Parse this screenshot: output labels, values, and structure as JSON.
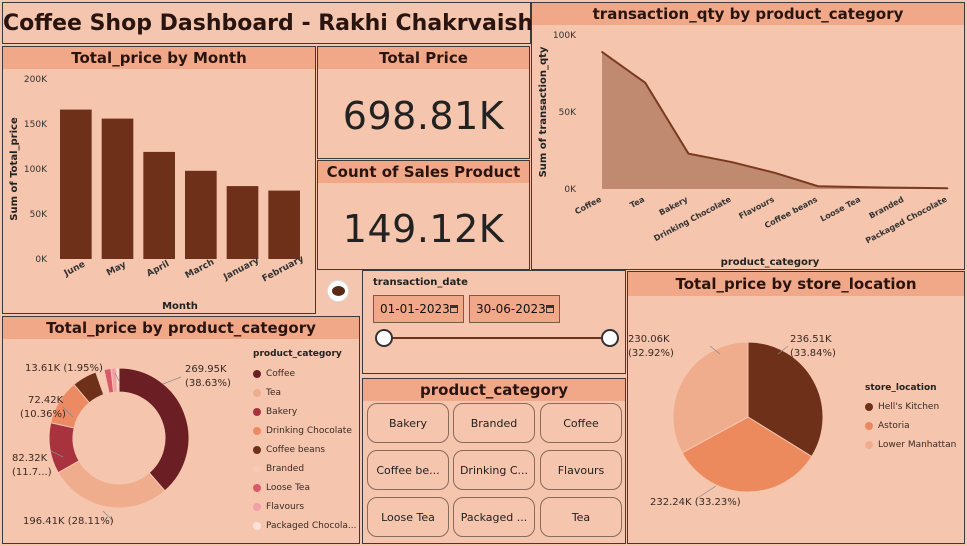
{
  "dashboard": {
    "title": "Coffee Shop Dashboard - Rakhi Chakrvaish"
  },
  "kpis": {
    "total_price": {
      "title": "Total Price",
      "value": "698.81K"
    },
    "count_sales": {
      "title": "Count of Sales Product",
      "value": "149.12K"
    }
  },
  "month_chart": {
    "title": "Total_price by Month",
    "chart_data": {
      "type": "bar",
      "categories": [
        "June",
        "May",
        "April",
        "March",
        "January",
        "February"
      ],
      "values": [
        166000,
        156000,
        119000,
        98000,
        81000,
        76000
      ],
      "ylim": [
        0,
        200000
      ],
      "yticks": [
        "0K",
        "50K",
        "100K",
        "150K",
        "200K"
      ],
      "xlabel": "Month",
      "ylabel": "Sum of Total_price",
      "color": "#6e3018"
    }
  },
  "qty_chart": {
    "title": "transaction_qty by product_category",
    "chart_data": {
      "type": "area",
      "categories": [
        "Coffee",
        "Tea",
        "Bakery",
        "Drinking Chocolate",
        "Flavours",
        "Coffee beans",
        "Loose Tea",
        "Branded",
        "Packaged Chocolate"
      ],
      "values": [
        89000,
        69000,
        23000,
        17500,
        10500,
        1800,
        1200,
        780,
        490
      ],
      "ylim": [
        0,
        100000
      ],
      "yticks": [
        "0K",
        "50K",
        "100K"
      ],
      "xlabel": "product_category",
      "ylabel": "Sum of transaction_qty",
      "color": "#7a3a20"
    }
  },
  "category_donut": {
    "title": "Total_price by product_category",
    "legend_title": "product_category",
    "chart_data": {
      "type": "pie",
      "categories": [
        "Coffee",
        "Tea",
        "Bakery",
        "Drinking Chocolate",
        "Coffee beans",
        "Branded",
        "Loose Tea",
        "Flavours",
        "Packaged Chocola..."
      ],
      "values": [
        269.95,
        196.41,
        82.32,
        72.42,
        40.09,
        13.61,
        11.21,
        8.41,
        4.41
      ],
      "colors": [
        "#6b1f24",
        "#f0ad8e",
        "#a8333f",
        "#ec8a63",
        "#6e3018",
        "#f7c9b4",
        "#d85a6a",
        "#f2a0a8",
        "#fbe3d8"
      ]
    },
    "labels": [
      {
        "value": "269.95K",
        "pct": "(38.63%)"
      },
      {
        "value": "196.41K (28.11%)"
      },
      {
        "value": "82.32K",
        "pct": "(11.7...)"
      },
      {
        "value": "72.42K",
        "pct": "(10.36%)"
      },
      {
        "value": "13.61K (1.95%)"
      }
    ]
  },
  "date_slicer": {
    "title": "transaction_date",
    "start": "01-01-2023",
    "end": "30-06-2023"
  },
  "category_slicer": {
    "title": "product_category",
    "buttons": [
      "Bakery",
      "Branded",
      "Coffee",
      "Coffee be...",
      "Drinking C...",
      "Flavours",
      "Loose Tea",
      "Packaged ...",
      "Tea"
    ]
  },
  "store_pie": {
    "title": "Total_price by store_location",
    "legend_title": "store_location",
    "chart_data": {
      "type": "pie",
      "categories": [
        "Hell's Kitchen",
        "Astoria",
        "Lower Manhattan"
      ],
      "values": [
        236.51,
        232.24,
        230.06
      ],
      "colors": [
        "#6e3018",
        "#ec8a5e",
        "#f0ad8e"
      ]
    },
    "labels": [
      {
        "value": "236.51K",
        "pct": "(33.84%)"
      },
      {
        "value": "232.24K (33.23%)"
      },
      {
        "value": "230.06K",
        "pct": "(32.92%)"
      }
    ]
  }
}
